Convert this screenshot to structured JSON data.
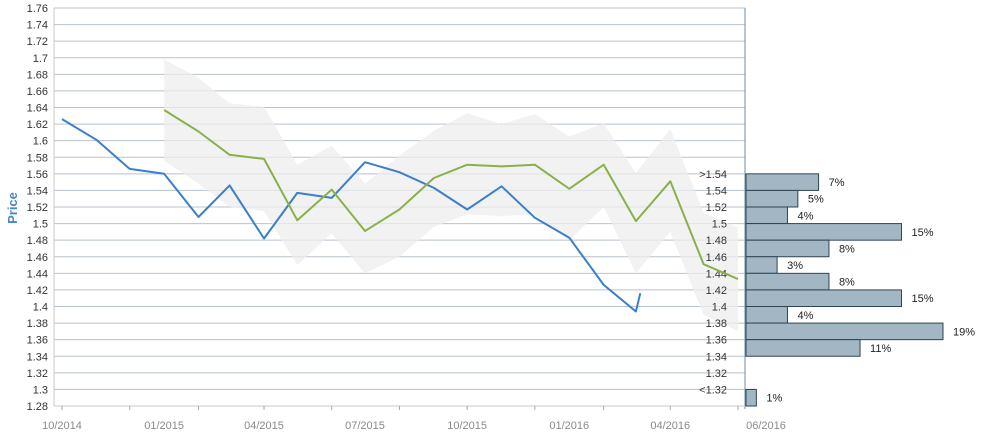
{
  "chart_data": {
    "type": "line",
    "ylabel": "Price",
    "xlabel": "",
    "ylim": [
      1.28,
      1.76
    ],
    "y_ticks": [
      "1.28",
      "1.3",
      "1.32",
      "1.34",
      "1.36",
      "1.38",
      "1.4",
      "1.42",
      "1.44",
      "1.46",
      "1.48",
      "1.5",
      "1.52",
      "1.54",
      "1.56",
      "1.58",
      "1.6",
      "1.62",
      "1.64",
      "1.66",
      "1.68",
      "1.7",
      "1.72",
      "1.74",
      "1.76"
    ],
    "x_ticks": [
      "10/2014",
      "01/2015",
      "04/2015",
      "07/2015",
      "10/2015",
      "01/2016",
      "04/2016",
      "06/2016"
    ],
    "grid": true,
    "series": [
      {
        "color": "#3b7fcc",
        "points": [
          [
            "2014-10-01",
            1.626
          ],
          [
            "2014-11-01",
            1.601
          ],
          [
            "2014-12-01",
            1.566
          ],
          [
            "2015-01-01",
            1.56
          ],
          [
            "2015-02-01",
            1.508
          ],
          [
            "2015-03-01",
            1.546
          ],
          [
            "2015-04-01",
            1.482
          ],
          [
            "2015-05-01",
            1.537
          ],
          [
            "2015-06-01",
            1.531
          ],
          [
            "2015-07-01",
            1.574
          ],
          [
            "2015-08-01",
            1.562
          ],
          [
            "2015-09-01",
            1.543
          ],
          [
            "2015-10-01",
            1.517
          ],
          [
            "2015-11-01",
            1.545
          ],
          [
            "2015-12-01",
            1.507
          ],
          [
            "2016-01-01",
            1.483
          ],
          [
            "2016-02-01",
            1.426
          ],
          [
            "2016-03-01",
            1.394
          ],
          [
            "2016-03-05",
            1.416
          ]
        ]
      },
      {
        "color": "#8bb04a",
        "points": [
          [
            "2015-01-01",
            1.637
          ],
          [
            "2015-02-01",
            1.611
          ],
          [
            "2015-03-01",
            1.583
          ],
          [
            "2015-04-01",
            1.578
          ],
          [
            "2015-05-01",
            1.504
          ],
          [
            "2015-06-01",
            1.541
          ],
          [
            "2015-07-01",
            1.491
          ],
          [
            "2015-08-01",
            1.517
          ],
          [
            "2015-09-01",
            1.555
          ],
          [
            "2015-10-01",
            1.571
          ],
          [
            "2015-11-01",
            1.569
          ],
          [
            "2015-12-01",
            1.571
          ],
          [
            "2016-01-01",
            1.542
          ],
          [
            "2016-02-01",
            1.571
          ],
          [
            "2016-03-01",
            1.503
          ],
          [
            "2016-04-01",
            1.551
          ],
          [
            "2016-05-01",
            1.451
          ],
          [
            "2016-06-01",
            1.433
          ]
        ]
      }
    ],
    "range_band": {
      "color": "#ededed",
      "upper": [
        [
          "2015-01-01",
          1.698
        ],
        [
          "2015-02-01",
          1.676
        ],
        [
          "2015-03-01",
          1.645
        ],
        [
          "2015-04-01",
          1.641
        ],
        [
          "2015-05-01",
          1.571
        ],
        [
          "2015-06-01",
          1.594
        ],
        [
          "2015-07-01",
          1.548
        ],
        [
          "2015-08-01",
          1.582
        ],
        [
          "2015-09-01",
          1.612
        ],
        [
          "2015-10-01",
          1.633
        ],
        [
          "2015-11-01",
          1.62
        ],
        [
          "2015-12-01",
          1.632
        ],
        [
          "2016-01-01",
          1.605
        ],
        [
          "2016-02-01",
          1.621
        ],
        [
          "2016-03-01",
          1.561
        ],
        [
          "2016-04-01",
          1.614
        ],
        [
          "2016-05-01",
          1.513
        ],
        [
          "2016-06-01",
          1.495
        ]
      ],
      "lower": [
        [
          "2015-01-01",
          1.576
        ],
        [
          "2015-02-01",
          1.548
        ],
        [
          "2015-03-01",
          1.52
        ],
        [
          "2015-04-01",
          1.515
        ],
        [
          "2015-05-01",
          1.45
        ],
        [
          "2015-06-01",
          1.488
        ],
        [
          "2015-07-01",
          1.44
        ],
        [
          "2015-08-01",
          1.46
        ],
        [
          "2015-09-01",
          1.496
        ],
        [
          "2015-10-01",
          1.511
        ],
        [
          "2015-11-01",
          1.509
        ],
        [
          "2015-12-01",
          1.511
        ],
        [
          "2016-01-01",
          1.48
        ],
        [
          "2016-02-01",
          1.52
        ],
        [
          "2016-03-01",
          1.44
        ],
        [
          "2016-04-01",
          1.49
        ],
        [
          "2016-05-01",
          1.39
        ],
        [
          "2016-06-01",
          1.37
        ]
      ]
    },
    "histogram": {
      "color": "#a2b6c4",
      "bins": [
        {
          "label": ">1.54",
          "low": 1.54,
          "high": 1.56,
          "percent": 7,
          "percent_label": "7%"
        },
        {
          "label": "1.54",
          "low": 1.52,
          "high": 1.54,
          "percent": 5,
          "percent_label": "5%"
        },
        {
          "label": "1.52",
          "low": 1.5,
          "high": 1.52,
          "percent": 4,
          "percent_label": "4%"
        },
        {
          "label": "1.5",
          "low": 1.48,
          "high": 1.5,
          "percent": 15,
          "percent_label": "15%"
        },
        {
          "label": "1.48",
          "low": 1.46,
          "high": 1.48,
          "percent": 8,
          "percent_label": "8%"
        },
        {
          "label": "1.46",
          "low": 1.44,
          "high": 1.46,
          "percent": 3,
          "percent_label": "3%"
        },
        {
          "label": "1.44",
          "low": 1.42,
          "high": 1.44,
          "percent": 8,
          "percent_label": "8%"
        },
        {
          "label": "1.42",
          "low": 1.4,
          "high": 1.42,
          "percent": 15,
          "percent_label": "15%"
        },
        {
          "label": "1.4",
          "low": 1.38,
          "high": 1.4,
          "percent": 4,
          "percent_label": "4%"
        },
        {
          "label": "1.38",
          "low": 1.36,
          "high": 1.38,
          "percent": 19,
          "percent_label": "19%"
        },
        {
          "label": "1.36",
          "low": 1.34,
          "high": 1.36,
          "percent": 11,
          "percent_label": "11%"
        },
        {
          "label": "1.34",
          "low": 1.32,
          "high": 1.34,
          "percent": 0,
          "percent_label": ""
        },
        {
          "label": "1.32",
          "low": 1.3,
          "high": 1.32,
          "percent": 0,
          "percent_label": ""
        },
        {
          "label": "<1.32",
          "low": 1.28,
          "high": 1.3,
          "percent": 1,
          "percent_label": "1%"
        }
      ]
    }
  }
}
